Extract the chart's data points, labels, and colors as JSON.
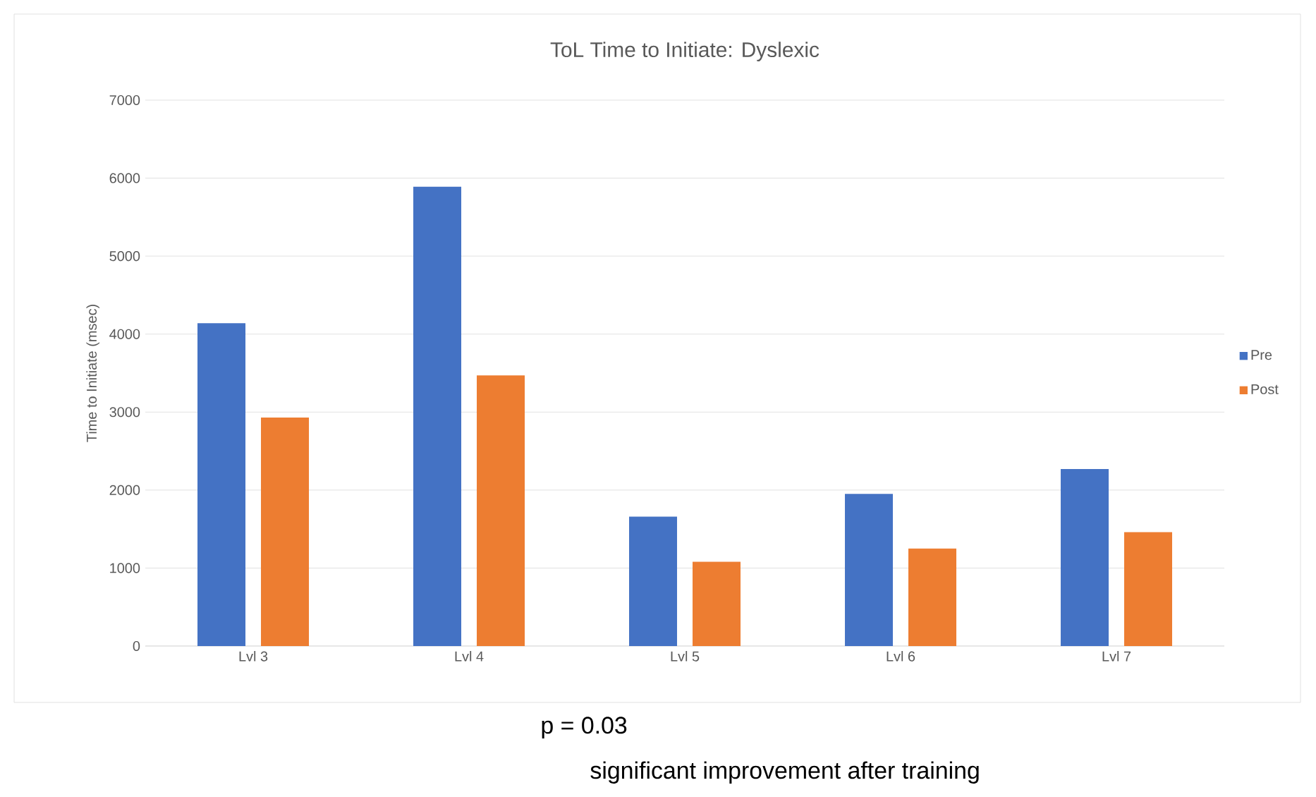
{
  "chart_data": {
    "type": "bar",
    "title": "ToL Time to Initiate: Dyslexic",
    "ylabel": "Time to Initiate (msec)",
    "categories": [
      "Lvl 3",
      "Lvl 4",
      "Lvl 5",
      "Lvl 6",
      "Lvl 7"
    ],
    "series": [
      {
        "name": "Pre",
        "color": "#4472c4",
        "values": [
          4140,
          5890,
          1660,
          1950,
          2270
        ]
      },
      {
        "name": "Post",
        "color": "#ed7d31",
        "values": [
          2930,
          3470,
          1080,
          1250,
          1460
        ]
      }
    ],
    "ylim": [
      0,
      7000
    ],
    "yticks": [
      0,
      1000,
      2000,
      3000,
      4000,
      5000,
      6000,
      7000
    ],
    "grid": "y",
    "legend": "right",
    "annotations": [
      "p = 0.03",
      "significant improvement after training"
    ]
  }
}
